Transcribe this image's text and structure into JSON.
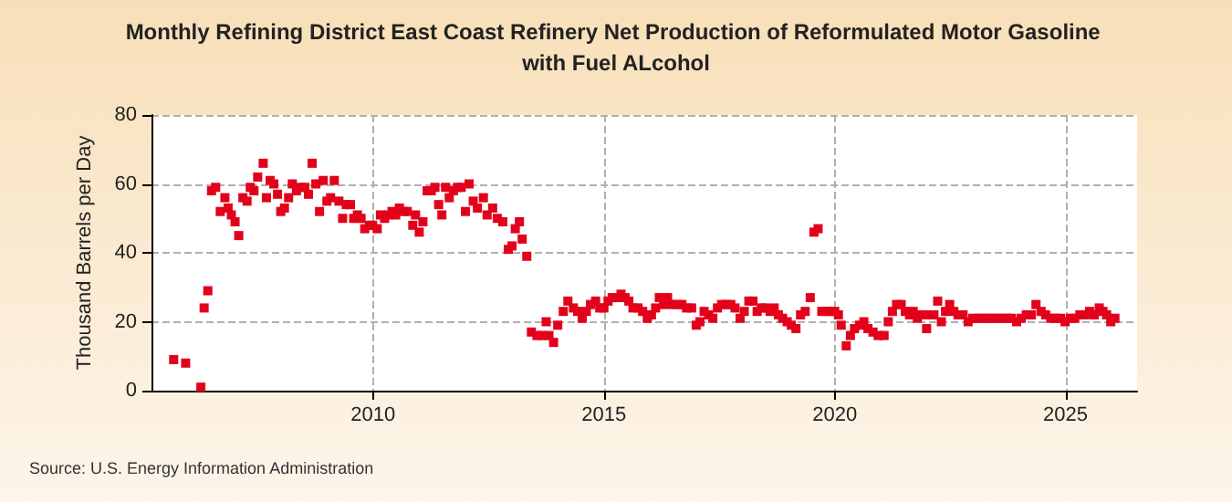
{
  "chart_data": {
    "type": "scatter",
    "title": "Monthly Refining District East Coast Refinery Net Production of Reformulated Motor Gasoline with Fuel ALcohol",
    "ylabel": "Thousand Barrels per Day",
    "annotations": [
      "Source: U.S. Energy Information Administration"
    ],
    "x": [
      2005.68,
      2005.94,
      2006.27,
      2006.34,
      2006.42,
      2006.5,
      2006.59,
      2006.69,
      2006.79,
      2006.86,
      2006.93,
      2007.01,
      2007.09,
      2007.18,
      2007.27,
      2007.34,
      2007.42,
      2007.5,
      2007.62,
      2007.69,
      2007.77,
      2007.85,
      2007.93,
      2008.0,
      2008.08,
      2008.17,
      2008.25,
      2008.34,
      2008.43,
      2008.52,
      2008.6,
      2008.68,
      2008.76,
      2008.84,
      2008.92,
      2009.0,
      2009.08,
      2009.16,
      2009.26,
      2009.34,
      2009.42,
      2009.51,
      2009.58,
      2009.66,
      2009.74,
      2009.82,
      2009.92,
      2009.99,
      2010.09,
      2010.16,
      2010.25,
      2010.33,
      2010.41,
      2010.49,
      2010.57,
      2010.65,
      2010.74,
      2010.86,
      2010.92,
      2011.0,
      2011.08,
      2011.17,
      2011.26,
      2011.34,
      2011.42,
      2011.49,
      2011.57,
      2011.65,
      2011.74,
      2011.83,
      2011.91,
      2012.0,
      2012.08,
      2012.17,
      2012.26,
      2012.39,
      2012.47,
      2012.59,
      2012.69,
      2012.81,
      2012.93,
      2013.01,
      2013.08,
      2013.17,
      2013.23,
      2013.33,
      2013.43,
      2013.55,
      2013.66,
      2013.75,
      2013.81,
      2013.91,
      2014.0,
      2014.12,
      2014.22,
      2014.34,
      2014.43,
      2014.53,
      2014.62,
      2014.71,
      2014.82,
      2014.91,
      2015.0,
      2015.09,
      2015.18,
      2015.28,
      2015.37,
      2015.46,
      2015.54,
      2015.63,
      2015.74,
      2015.84,
      2015.94,
      2016.03,
      2016.12,
      2016.2,
      2016.29,
      2016.38,
      2016.48,
      2016.59,
      2016.69,
      2016.79,
      2016.9,
      2017.0,
      2017.08,
      2017.17,
      2017.27,
      2017.36,
      2017.46,
      2017.55,
      2017.65,
      2017.75,
      2017.84,
      2017.95,
      2018.04,
      2018.14,
      2018.23,
      2018.32,
      2018.41,
      2018.5,
      2018.6,
      2018.69,
      2018.78,
      2018.87,
      2018.97,
      2019.06,
      2019.16,
      2019.26,
      2019.36,
      2019.47,
      2019.55,
      2019.64,
      2019.72,
      2019.83,
      2019.91,
      2020.0,
      2020.08,
      2020.14,
      2020.25,
      2020.34,
      2020.43,
      2020.54,
      2020.63,
      2020.72,
      2020.83,
      2020.94,
      2021.07,
      2021.16,
      2021.25,
      2021.34,
      2021.44,
      2021.53,
      2021.62,
      2021.7,
      2021.79,
      2021.88,
      2021.99,
      2022.07,
      2022.15,
      2022.23,
      2022.31,
      2022.4,
      2022.49,
      2022.58,
      2022.67,
      2022.78,
      2022.89,
      2022.99,
      2023.1,
      2023.2,
      2023.31,
      2023.41,
      2023.52,
      2023.62,
      2023.73,
      2023.83,
      2023.94,
      2024.04,
      2024.15,
      2024.26,
      2024.36,
      2024.47,
      2024.57,
      2024.68,
      2024.78,
      2024.89,
      2024.99,
      2025.1,
      2025.2,
      2025.31,
      2025.42,
      2025.52,
      2025.62,
      2025.73,
      2025.81,
      2025.89,
      2025.98,
      2026.07
    ],
    "series": [
      {
        "color": "#e3001b",
        "values": [
          9,
          8,
          1,
          24,
          29,
          58,
          59,
          52,
          56,
          53,
          51,
          49,
          45,
          56,
          55,
          59,
          58,
          62,
          66,
          56,
          61,
          60,
          57,
          52,
          53,
          56,
          60,
          58,
          59,
          59,
          57,
          66,
          60,
          52,
          61,
          55,
          56,
          61,
          55,
          50,
          54,
          54,
          50,
          51,
          50,
          47,
          48,
          48,
          47,
          51,
          50,
          51,
          52,
          51,
          53,
          52,
          52,
          48,
          51,
          46,
          49,
          58,
          58,
          59,
          54,
          51,
          59,
          56,
          58,
          59,
          59,
          52,
          60,
          55,
          53,
          56,
          51,
          53,
          50,
          49,
          41,
          42,
          47,
          49,
          44,
          39,
          17,
          16,
          16,
          20,
          16,
          14,
          19,
          23,
          26,
          24,
          23,
          21,
          23,
          25,
          26,
          24,
          24,
          26,
          27,
          27,
          28,
          27,
          26,
          24,
          24,
          23,
          21,
          22,
          24,
          27,
          25,
          27,
          25,
          25,
          25,
          24,
          24,
          19,
          20,
          23,
          22,
          21,
          24,
          25,
          25,
          25,
          24,
          21,
          23,
          26,
          26,
          23,
          24,
          24,
          23,
          24,
          22,
          21,
          20,
          19,
          18,
          22,
          23,
          27,
          46,
          47,
          23,
          23,
          23,
          23,
          22,
          19,
          13,
          16,
          18,
          19,
          20,
          18,
          17,
          16,
          16,
          20,
          23,
          25,
          25,
          23,
          22,
          23,
          21,
          22,
          18,
          22,
          22,
          26,
          20,
          23,
          25,
          23,
          22,
          22,
          20,
          21,
          21,
          21,
          21,
          21,
          21,
          21,
          21,
          21,
          20,
          21,
          22,
          22,
          25,
          23,
          22,
          21,
          21,
          21,
          20,
          21,
          21,
          22,
          22,
          23,
          22,
          24,
          23,
          22,
          20,
          21
        ]
      }
    ],
    "xlim": [
      2005.2,
      2026.55
    ],
    "xticks": [
      2010,
      2015,
      2020,
      2025
    ],
    "ylim": [
      0,
      80
    ],
    "yticks": [
      0,
      20,
      40,
      60,
      80
    ],
    "grid": true,
    "marker": "square"
  }
}
